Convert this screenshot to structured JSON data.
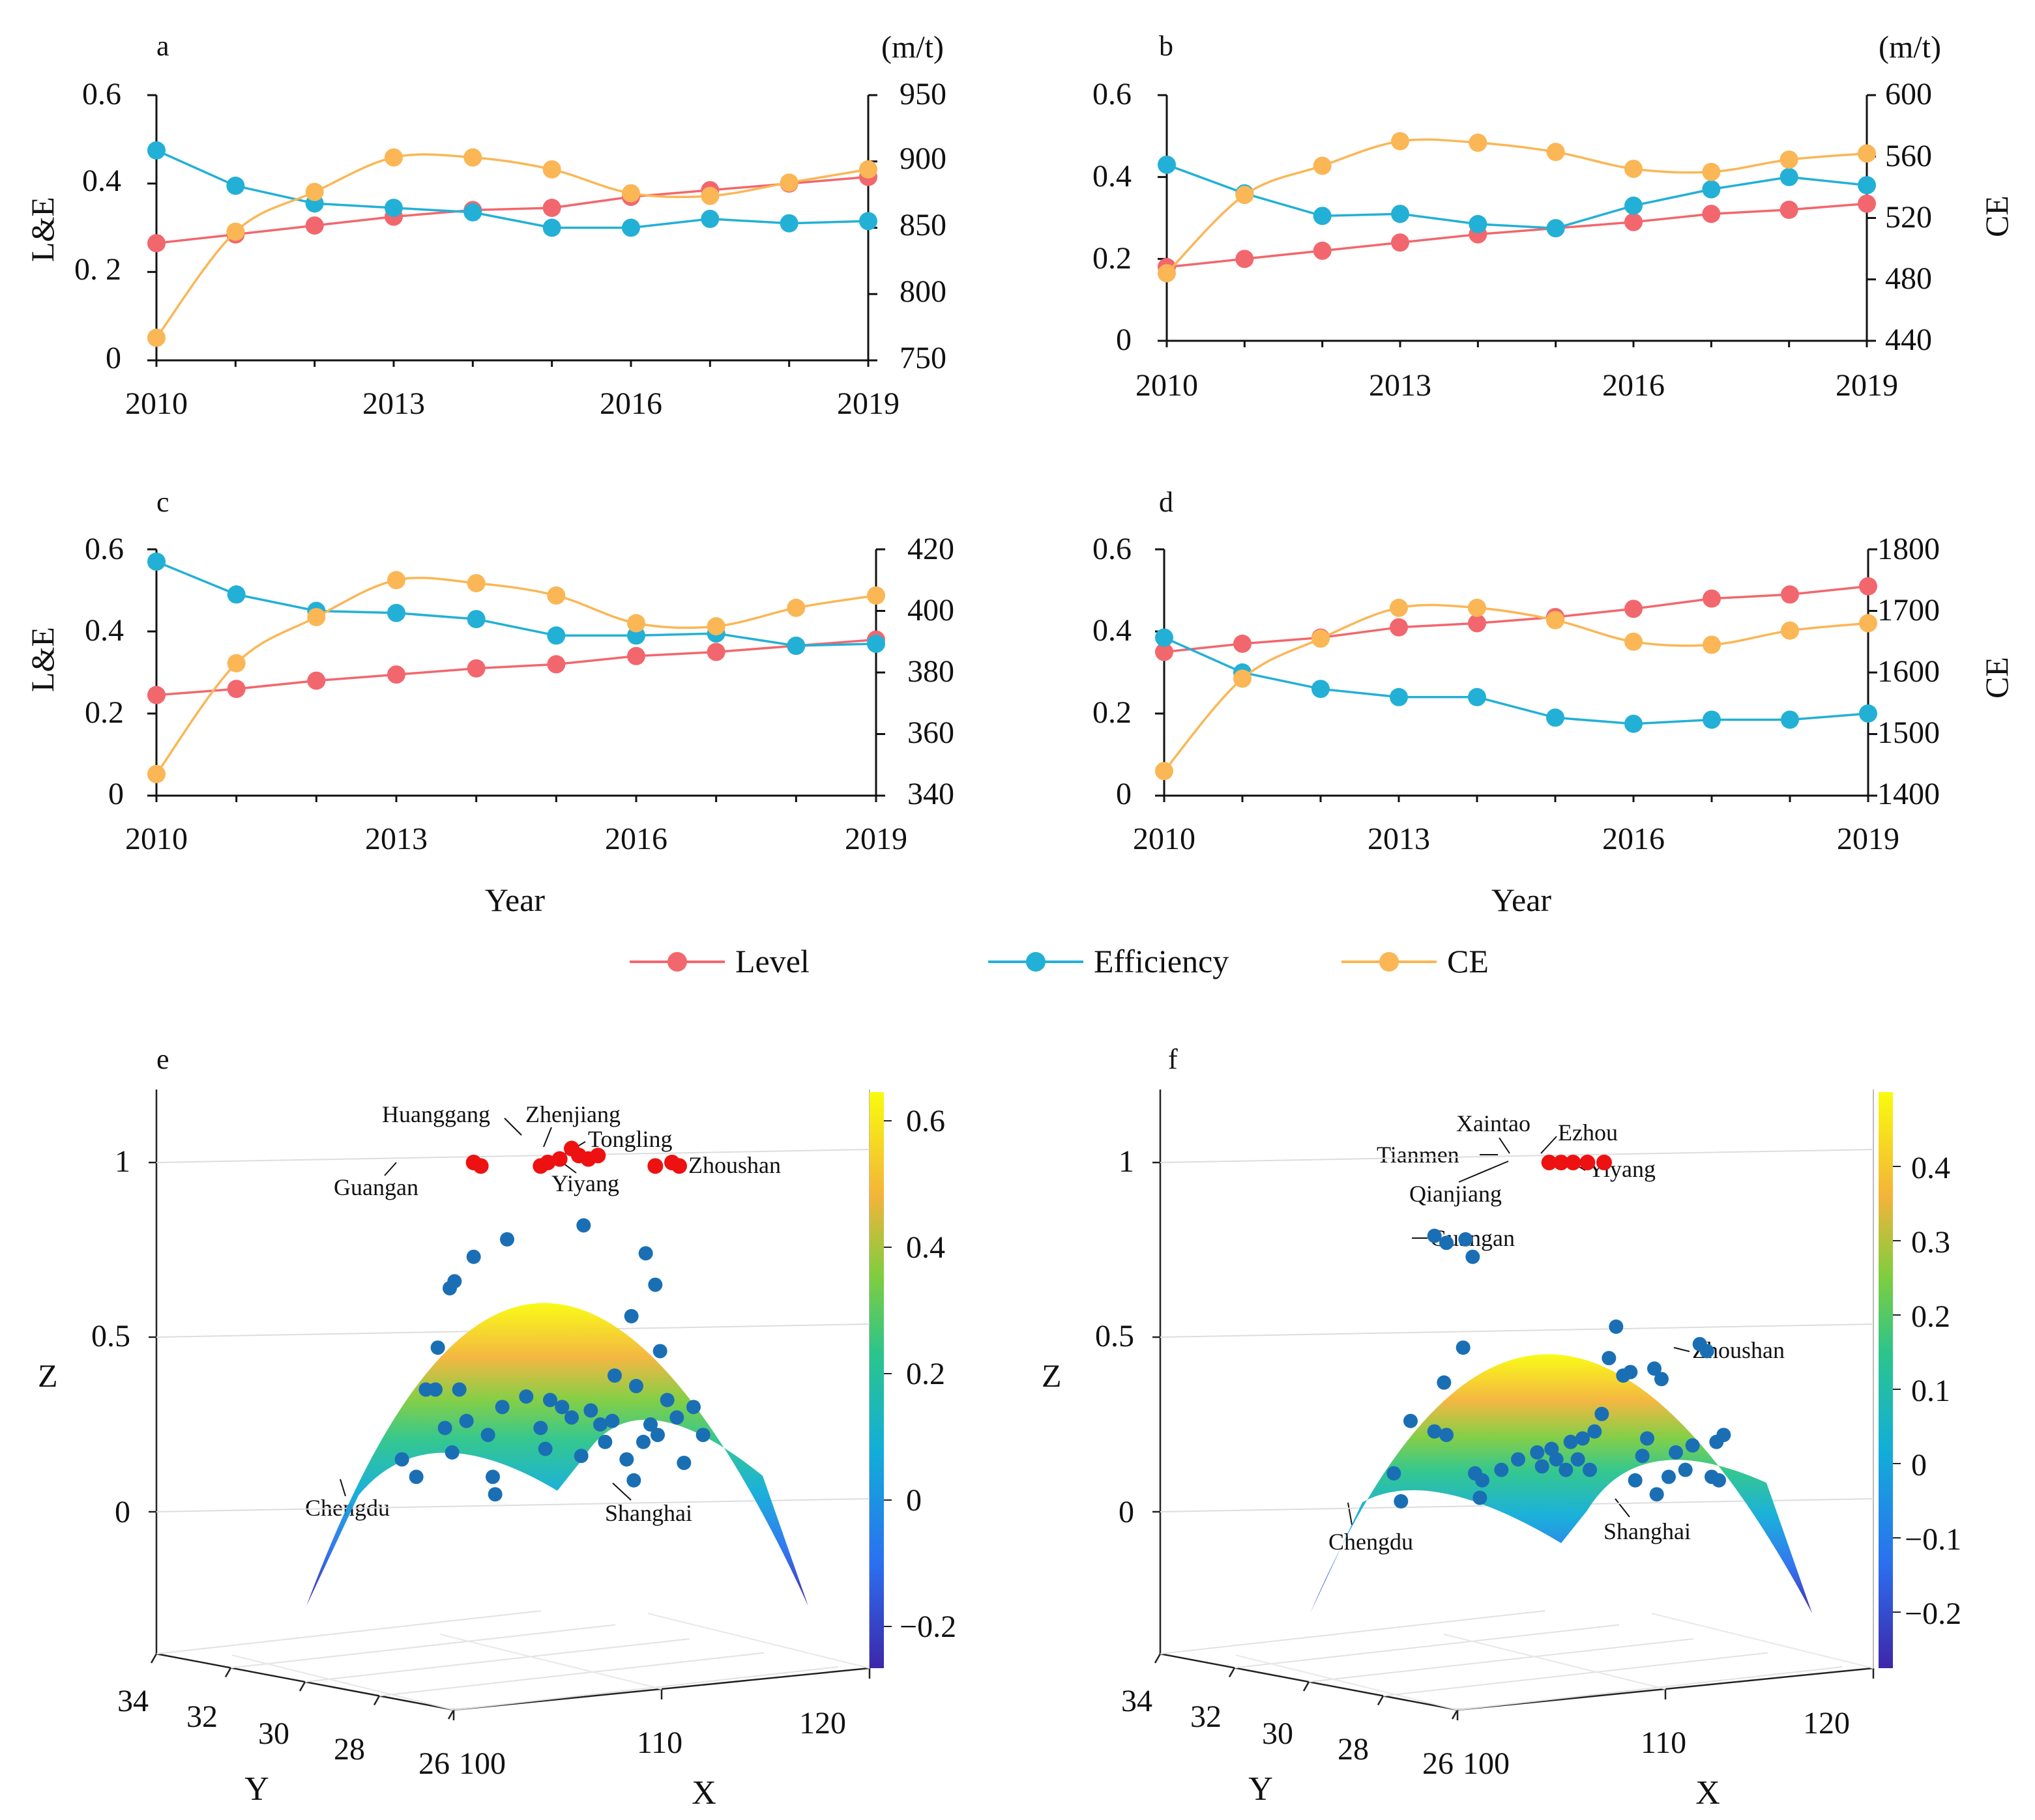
{
  "colors": {
    "level": "#f2676d",
    "efficiency": "#23b0d6",
    "ce": "#fbb655",
    "axis": "#111111",
    "scatter_red": "#ee1111",
    "scatter_blue": "#1a6fb4"
  },
  "legend": {
    "level": "Level",
    "efficiency": "Efficiency",
    "ce": "CE"
  },
  "chart_data": [
    {
      "panel": "a",
      "type": "line",
      "title": "a",
      "x": [
        2010,
        2011,
        2012,
        2013,
        2014,
        2015,
        2016,
        2017,
        2018,
        2019
      ],
      "xticks": [
        "2010",
        "2013",
        "2016",
        "2019"
      ],
      "ylabel_left": "L&E",
      "ylim_left": [
        0,
        0.6
      ],
      "yticks_left": [
        "0",
        "0. 2",
        "0.4",
        "0.6"
      ],
      "ylabel_right": "",
      "unit_right": "(m/t)",
      "ylim_right": [
        750,
        950
      ],
      "yticks_right": [
        "750",
        "800",
        "850",
        "900",
        "950"
      ],
      "xlabel": "",
      "series": [
        {
          "name": "Level",
          "axis": "left",
          "values": [
            0.265,
            0.285,
            0.305,
            0.325,
            0.34,
            0.345,
            0.37,
            0.385,
            0.4,
            0.415
          ]
        },
        {
          "name": "Efficiency",
          "axis": "left",
          "values": [
            0.475,
            0.395,
            0.355,
            0.345,
            0.335,
            0.3,
            0.3,
            0.32,
            0.31,
            0.315
          ]
        },
        {
          "name": "CE",
          "axis": "right",
          "values": [
            767,
            847,
            877,
            903,
            903,
            894,
            876,
            874,
            884,
            894
          ]
        }
      ]
    },
    {
      "panel": "b",
      "type": "line",
      "title": "b",
      "x": [
        2010,
        2011,
        2012,
        2013,
        2014,
        2015,
        2016,
        2017,
        2018,
        2019
      ],
      "xticks": [
        "2010",
        "2013",
        "2016",
        "2019"
      ],
      "ylabel_left": "",
      "ylim_left": [
        0,
        0.6
      ],
      "yticks_left": [
        "0",
        "0.2",
        "0.4",
        "0.6"
      ],
      "ylabel_right": "CE",
      "unit_right": "(m/t)",
      "ylim_right": [
        440,
        600
      ],
      "yticks_right": [
        "440",
        "480",
        "520",
        "560",
        "600"
      ],
      "xlabel": "",
      "series": [
        {
          "name": "Level",
          "axis": "left",
          "values": [
            0.18,
            0.2,
            0.22,
            0.24,
            0.26,
            0.275,
            0.29,
            0.31,
            0.32,
            0.335
          ]
        },
        {
          "name": "Efficiency",
          "axis": "left",
          "values": [
            0.43,
            0.36,
            0.305,
            0.31,
            0.285,
            0.275,
            0.33,
            0.37,
            0.4,
            0.38
          ]
        },
        {
          "name": "CE",
          "axis": "right",
          "values": [
            484,
            535,
            554,
            570,
            569,
            563,
            552,
            550,
            558,
            562
          ]
        }
      ]
    },
    {
      "panel": "c",
      "type": "line",
      "title": "c",
      "x": [
        2010,
        2011,
        2012,
        2013,
        2014,
        2015,
        2016,
        2017,
        2018,
        2019
      ],
      "xticks": [
        "2010",
        "2013",
        "2016",
        "2019"
      ],
      "ylabel_left": "L&E",
      "ylim_left": [
        0,
        0.6
      ],
      "yticks_left": [
        "0",
        "0.2",
        "0.4",
        "0.6"
      ],
      "ylabel_right": "",
      "unit_right": "",
      "ylim_right": [
        340,
        420
      ],
      "yticks_right": [
        "340",
        "360",
        "380",
        "400",
        "420"
      ],
      "xlabel": "Year",
      "series": [
        {
          "name": "Level",
          "axis": "left",
          "values": [
            0.245,
            0.26,
            0.28,
            0.295,
            0.31,
            0.32,
            0.34,
            0.35,
            0.365,
            0.38
          ]
        },
        {
          "name": "Efficiency",
          "axis": "left",
          "values": [
            0.57,
            0.49,
            0.45,
            0.445,
            0.43,
            0.39,
            0.39,
            0.395,
            0.365,
            0.37
          ]
        },
        {
          "name": "CE",
          "axis": "right",
          "values": [
            347,
            383,
            398,
            410,
            409,
            405,
            396,
            395,
            401,
            405
          ]
        }
      ]
    },
    {
      "panel": "d",
      "type": "line",
      "title": "d",
      "x": [
        2010,
        2011,
        2012,
        2013,
        2014,
        2015,
        2016,
        2017,
        2018,
        2019
      ],
      "xticks": [
        "2010",
        "2013",
        "2016",
        "2019"
      ],
      "ylabel_left": "",
      "ylim_left": [
        0,
        0.6
      ],
      "yticks_left": [
        "0",
        "0.2",
        "0.4",
        "0.6"
      ],
      "ylabel_right": "CE",
      "unit_right": "",
      "ylim_right": [
        1400,
        1800
      ],
      "yticks_right": [
        "1400",
        "1500",
        "1600",
        "1700",
        "1800"
      ],
      "xlabel": "Year",
      "series": [
        {
          "name": "Level",
          "axis": "left",
          "values": [
            0.35,
            0.37,
            0.385,
            0.41,
            0.42,
            0.435,
            0.455,
            0.48,
            0.49,
            0.51
          ]
        },
        {
          "name": "Efficiency",
          "axis": "left",
          "values": [
            0.385,
            0.3,
            0.26,
            0.24,
            0.24,
            0.19,
            0.175,
            0.185,
            0.185,
            0.2
          ]
        },
        {
          "name": "CE",
          "axis": "right",
          "values": [
            1440,
            1590,
            1655,
            1705,
            1705,
            1685,
            1650,
            1645,
            1668,
            1680
          ]
        }
      ]
    },
    {
      "panel": "e",
      "type": "scatter",
      "title": "e",
      "xlabel": "X",
      "ylabel": "Y",
      "zlabel": "Z",
      "xticks": [
        "100",
        "110",
        "120"
      ],
      "yticks": [
        "34",
        "32",
        "30",
        "28",
        "26"
      ],
      "zticks": [
        "0",
        "0.5",
        "1"
      ],
      "zlim": [
        -0.4,
        1.2
      ],
      "colorbar_ticks": [
        "0.6",
        "0.4",
        "0.2",
        "0",
        "−0.2"
      ],
      "surface": {
        "x_range": [
          100,
          121
        ],
        "peak": 0.62,
        "ends": -0.27
      },
      "labels": [
        {
          "text": "Huanggang",
          "x": 110.0,
          "z": 1.0
        },
        {
          "text": "Zhenjiang",
          "x": 111.5,
          "z": 1.03
        },
        {
          "text": "Tongling",
          "x": 112.5,
          "z": 1.0
        },
        {
          "text": "Yiyang",
          "x": 111.8,
          "z": 1.0
        },
        {
          "text": "Zhoushan",
          "x": 116.0,
          "z": 1.0
        },
        {
          "text": "Guangan",
          "x": 107.2,
          "z": 1.0
        },
        {
          "text": "Chengdu",
          "x": 104.5,
          "z": 0.1
        },
        {
          "text": "Shanghai",
          "x": 115.5,
          "z": 0.09
        }
      ],
      "red_points": [
        [
          107.0,
          1.0
        ],
        [
          107.3,
          0.99
        ],
        [
          109.8,
          0.99
        ],
        [
          110.1,
          1.0
        ],
        [
          110.6,
          1.01
        ],
        [
          111.1,
          1.04
        ],
        [
          111.4,
          1.02
        ],
        [
          111.8,
          1.01
        ],
        [
          112.2,
          1.02
        ],
        [
          114.6,
          0.99
        ],
        [
          115.3,
          1.0
        ],
        [
          115.6,
          0.99
        ]
      ],
      "blue_points": [
        [
          104.0,
          0.15
        ],
        [
          105.0,
          0.35
        ],
        [
          105.5,
          0.47
        ],
        [
          106.0,
          0.64
        ],
        [
          106.2,
          0.66
        ],
        [
          107.0,
          0.73
        ],
        [
          108.4,
          0.78
        ],
        [
          111.6,
          0.82
        ],
        [
          113.6,
          0.56
        ],
        [
          114.2,
          0.74
        ],
        [
          114.6,
          0.65
        ],
        [
          114.8,
          0.46
        ],
        [
          104.6,
          0.1
        ],
        [
          105.8,
          0.24
        ],
        [
          106.1,
          0.17
        ],
        [
          106.7,
          0.26
        ],
        [
          107.6,
          0.22
        ],
        [
          107.8,
          0.1
        ],
        [
          107.9,
          0.05
        ],
        [
          108.2,
          0.3
        ],
        [
          109.2,
          0.33
        ],
        [
          109.8,
          0.24
        ],
        [
          110.2,
          0.32
        ],
        [
          110.7,
          0.3
        ],
        [
          111.1,
          0.27
        ],
        [
          110.0,
          0.18
        ],
        [
          111.5,
          0.16
        ],
        [
          111.9,
          0.29
        ],
        [
          112.3,
          0.25
        ],
        [
          112.8,
          0.26
        ],
        [
          112.9,
          0.39
        ],
        [
          113.4,
          0.15
        ],
        [
          113.8,
          0.36
        ],
        [
          114.1,
          0.2
        ],
        [
          114.4,
          0.25
        ],
        [
          114.7,
          0.22
        ],
        [
          115.1,
          0.32
        ],
        [
          115.5,
          0.27
        ],
        [
          115.8,
          0.14
        ],
        [
          116.2,
          0.3
        ],
        [
          116.6,
          0.22
        ],
        [
          113.7,
          0.09
        ],
        [
          105.4,
          0.35
        ],
        [
          106.4,
          0.35
        ],
        [
          112.5,
          0.2
        ]
      ]
    },
    {
      "panel": "f",
      "type": "scatter",
      "title": "f",
      "xlabel": "X",
      "ylabel": "Y",
      "zlabel": "Z",
      "xticks": [
        "100",
        "110",
        "120"
      ],
      "yticks": [
        "34",
        "32",
        "30",
        "28",
        "26"
      ],
      "zticks": [
        "0",
        "0.5",
        "1"
      ],
      "zlim": [
        -0.4,
        1.2
      ],
      "colorbar_ticks": [
        "0.4",
        "0.3",
        "0.2",
        "0.1",
        "0",
        "−0.1",
        "−0.2"
      ],
      "surface": {
        "x_range": [
          100,
          121
        ],
        "peak": 0.47,
        "ends": -0.29
      },
      "labels": [
        {
          "text": "Xaintao",
          "x": 110.7,
          "z": 1.0
        },
        {
          "text": "Ezhou",
          "x": 111.6,
          "z": 1.0
        },
        {
          "text": "Tianmen",
          "x": 110.0,
          "z": 1.0
        },
        {
          "text": "Yiyang",
          "x": 112.4,
          "z": 1.0
        },
        {
          "text": "Qianjiang",
          "x": 110.2,
          "z": 1.0
        },
        {
          "text": "Guangan",
          "x": 106.8,
          "z": 0.78
        },
        {
          "text": "Zhoushan",
          "x": 116.5,
          "z": 0.47
        },
        {
          "text": "Chengdu",
          "x": 103.6,
          "z": 0.03
        },
        {
          "text": "Shanghai",
          "x": 114.8,
          "z": 0.05
        }
      ],
      "red_points": [
        [
          110.0,
          1.0
        ],
        [
          110.5,
          1.0
        ],
        [
          111.0,
          1.0
        ],
        [
          111.6,
          1.0
        ],
        [
          112.3,
          1.0
        ]
      ],
      "blue_points": [
        [
          105.2,
          0.79
        ],
        [
          105.7,
          0.77
        ],
        [
          106.5,
          0.78
        ],
        [
          106.8,
          0.73
        ],
        [
          106.4,
          0.47
        ],
        [
          105.6,
          0.37
        ],
        [
          104.2,
          0.26
        ],
        [
          105.2,
          0.23
        ],
        [
          105.7,
          0.22
        ],
        [
          103.5,
          0.11
        ],
        [
          103.8,
          0.03
        ],
        [
          106.9,
          0.11
        ],
        [
          107.2,
          0.09
        ],
        [
          107.1,
          0.04
        ],
        [
          108.0,
          0.12
        ],
        [
          108.7,
          0.15
        ],
        [
          109.5,
          0.17
        ],
        [
          109.7,
          0.13
        ],
        [
          110.1,
          0.18
        ],
        [
          110.3,
          0.15
        ],
        [
          110.7,
          0.12
        ],
        [
          110.9,
          0.2
        ],
        [
          111.2,
          0.15
        ],
        [
          111.4,
          0.21
        ],
        [
          111.7,
          0.12
        ],
        [
          111.9,
          0.23
        ],
        [
          112.2,
          0.28
        ],
        [
          112.5,
          0.44
        ],
        [
          112.8,
          0.53
        ],
        [
          113.1,
          0.39
        ],
        [
          113.4,
          0.4
        ],
        [
          113.6,
          0.09
        ],
        [
          113.9,
          0.16
        ],
        [
          114.1,
          0.21
        ],
        [
          114.4,
          0.41
        ],
        [
          114.7,
          0.38
        ],
        [
          114.5,
          0.05
        ],
        [
          115.0,
          0.1
        ],
        [
          115.3,
          0.17
        ],
        [
          115.7,
          0.12
        ],
        [
          116.0,
          0.19
        ],
        [
          116.3,
          0.48
        ],
        [
          116.6,
          0.46
        ],
        [
          117.0,
          0.2
        ],
        [
          117.3,
          0.22
        ],
        [
          116.8,
          0.1
        ],
        [
          117.1,
          0.09
        ]
      ]
    }
  ]
}
